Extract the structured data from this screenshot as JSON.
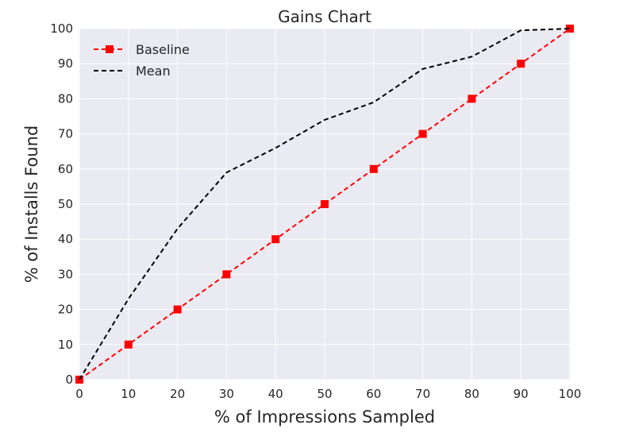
{
  "chart_data": {
    "type": "line",
    "title": "Gains Chart",
    "xlabel": "% of Impressions Sampled",
    "ylabel": "% of Installs Found",
    "xlim": [
      0,
      100
    ],
    "ylim": [
      0,
      100
    ],
    "xticks": [
      0,
      10,
      20,
      30,
      40,
      50,
      60,
      70,
      80,
      90,
      100
    ],
    "yticks": [
      0,
      10,
      20,
      30,
      40,
      50,
      60,
      70,
      80,
      90,
      100
    ],
    "grid": true,
    "legend_position": "top-left",
    "series": [
      {
        "name": "Baseline",
        "color": "#ff0000",
        "line_style": "dashed",
        "marker": "square",
        "x": [
          0,
          10,
          20,
          30,
          40,
          50,
          60,
          70,
          80,
          90,
          100
        ],
        "y": [
          0,
          10,
          20,
          30,
          40,
          50,
          60,
          70,
          80,
          90,
          100
        ]
      },
      {
        "name": "Mean",
        "color": "#000000",
        "line_style": "dashed",
        "marker": "none",
        "x": [
          0,
          10,
          20,
          30,
          40,
          50,
          60,
          70,
          80,
          90,
          100
        ],
        "y": [
          0,
          23,
          43,
          59,
          66,
          74,
          79,
          88.5,
          92,
          99.5,
          100
        ]
      }
    ]
  }
}
